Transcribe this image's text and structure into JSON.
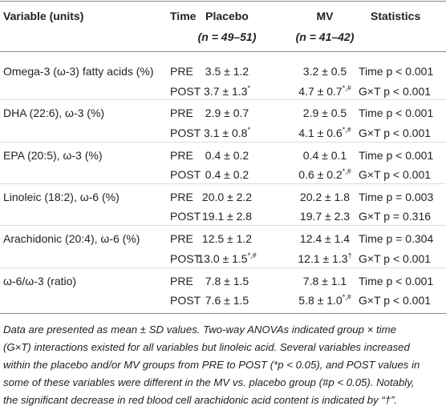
{
  "table": {
    "header": {
      "variable": "Variable (units)",
      "time": "Time",
      "placebo": "Placebo",
      "placebo_n": "(n = 49–51)",
      "mv": "MV",
      "mv_n": "(n = 41–42)",
      "stats": "Statistics"
    },
    "groups": [
      {
        "variable": "Omega-3 (ω-3) fatty acids (%)",
        "rows": [
          [
            "PRE",
            "3.5 ± 1.2",
            "3.2 ± 0.5",
            "Time p < 0.001"
          ],
          [
            "POST",
            {
              "text": "3.7 ± 1.3",
              "sup": "*"
            },
            {
              "text": "4.7 ± 0.7",
              "sup": "*,#"
            },
            "G×T p < 0.001"
          ]
        ]
      },
      {
        "variable": "DHA (22:6), ω-3 (%)",
        "rows": [
          [
            "PRE",
            "2.9 ± 0.7",
            "2.9 ± 0.5",
            "Time p < 0.001"
          ],
          [
            "POST",
            {
              "text": "3.1 ± 0.8",
              "sup": "*"
            },
            {
              "text": "4.1 ± 0.6",
              "sup": "*,#"
            },
            "G×T p < 0.001"
          ]
        ]
      },
      {
        "variable": "EPA (20:5), ω-3 (%)",
        "rows": [
          [
            "PRE",
            "0.4 ± 0.2",
            "0.4 ± 0.1",
            "Time p < 0.001"
          ],
          [
            "POST",
            "0.4 ± 0.2",
            {
              "text": "0.6 ± 0.2",
              "sup": "*,#"
            },
            "G×T p < 0.001"
          ]
        ]
      },
      {
        "variable": "Linoleic (18:2), ω-6 (%)",
        "rows": [
          [
            "PRE",
            "20.0 ± 2.2",
            "20.2 ± 1.8",
            "Time p = 0.003"
          ],
          [
            "POST",
            "19.1 ± 2.8",
            "19.7 ± 2.3",
            "G×T p = 0.316"
          ]
        ]
      },
      {
        "variable": "Arachidonic (20:4), ω-6 (%)",
        "rows": [
          [
            "PRE",
            "12.5 ± 1.2",
            "12.4 ± 1.4",
            "Time p = 0.304"
          ],
          [
            "POST",
            {
              "text": "13.0 ± 1.5",
              "sup": "*,#"
            },
            {
              "text": "12.1 ± 1.3",
              "sup": "†"
            },
            "G×T p < 0.001"
          ]
        ]
      },
      {
        "variable": "ω-6/ω-3 (ratio)",
        "rows": [
          [
            "PRE",
            "7.8 ± 1.5",
            "7.8 ± 1.1",
            "Time p < 0.001"
          ],
          [
            "POST",
            "7.6 ± 1.5",
            {
              "text": "5.8 ± 1.0",
              "sup": "*,#"
            },
            "G×T p < 0.001"
          ]
        ]
      }
    ],
    "footnote": [
      "Data are presented as mean ± SD values. Two-way ANOVAs indicated group × time",
      "(G×T) interactions existed for all variables but linoleic acid. Several variables increased",
      "within the placebo and/or MV groups from PRE to POST (*p < 0.05), and POST values in",
      "some of these variables were different in the MV vs. placebo group (#p < 0.05). Notably,",
      "the significant decrease in red blood cell arachidonic acid content is indicated by “†”."
    ]
  }
}
